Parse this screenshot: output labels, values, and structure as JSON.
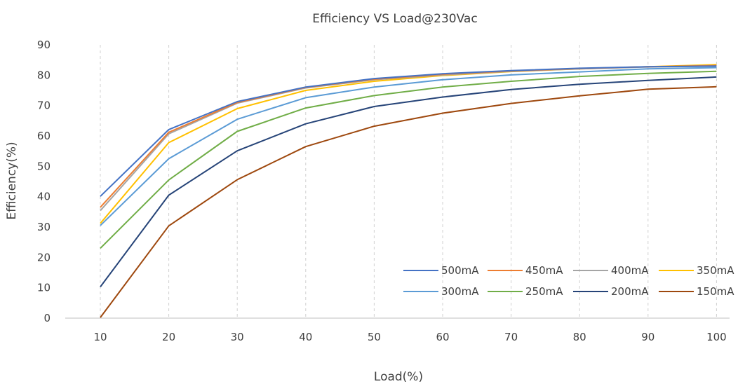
{
  "chart_data": {
    "type": "line",
    "title": "Efficiency VS Load@230Vac",
    "xlabel": "Load(%)",
    "ylabel": "Efficiency(%)",
    "categories": [
      "10",
      "20",
      "30",
      "40",
      "50",
      "60",
      "70",
      "80",
      "90",
      "100"
    ],
    "ylim": [
      0,
      90
    ],
    "yticks": [
      "0",
      "10",
      "20",
      "30",
      "40",
      "50",
      "60",
      "70",
      "80",
      "90"
    ],
    "grid": "vertical-dashed",
    "legend_position": "bottom-right",
    "series": [
      {
        "name": "500mA",
        "color": "#4472C4",
        "values": [
          40.1,
          62.1,
          71.3,
          76.1,
          78.9,
          80.5,
          81.5,
          82.3,
          82.8,
          83.0
        ]
      },
      {
        "name": "450mA",
        "color": "#ED7D31",
        "values": [
          36.5,
          61.2,
          71.0,
          76.0,
          78.7,
          80.3,
          81.4,
          82.2,
          82.8,
          83.2
        ]
      },
      {
        "name": "400mA",
        "color": "#A5A5A5",
        "values": [
          35.4,
          60.7,
          70.8,
          75.8,
          78.5,
          80.1,
          81.3,
          82.1,
          82.7,
          83.0
        ]
      },
      {
        "name": "350mA",
        "color": "#FFC000",
        "values": [
          31.2,
          57.8,
          69.0,
          75.0,
          78.0,
          79.9,
          81.2,
          82.1,
          82.8,
          83.5
        ]
      },
      {
        "name": "300mA",
        "color": "#5B9BD5",
        "values": [
          30.5,
          52.5,
          65.5,
          72.6,
          76.1,
          78.5,
          80.1,
          81.1,
          82.1,
          82.5
        ]
      },
      {
        "name": "250mA",
        "color": "#70AD47",
        "values": [
          23.0,
          45.5,
          61.5,
          69.2,
          73.3,
          76.1,
          78.0,
          79.6,
          80.6,
          81.3
        ]
      },
      {
        "name": "200mA",
        "color": "#264478",
        "values": [
          10.3,
          40.5,
          55.1,
          64.0,
          69.7,
          72.8,
          75.3,
          77.0,
          78.3,
          79.4
        ]
      },
      {
        "name": "150mA",
        "color": "#9E480E",
        "values": [
          0.2,
          30.4,
          45.6,
          56.5,
          63.2,
          67.5,
          70.7,
          73.2,
          75.4,
          76.2
        ]
      }
    ]
  }
}
